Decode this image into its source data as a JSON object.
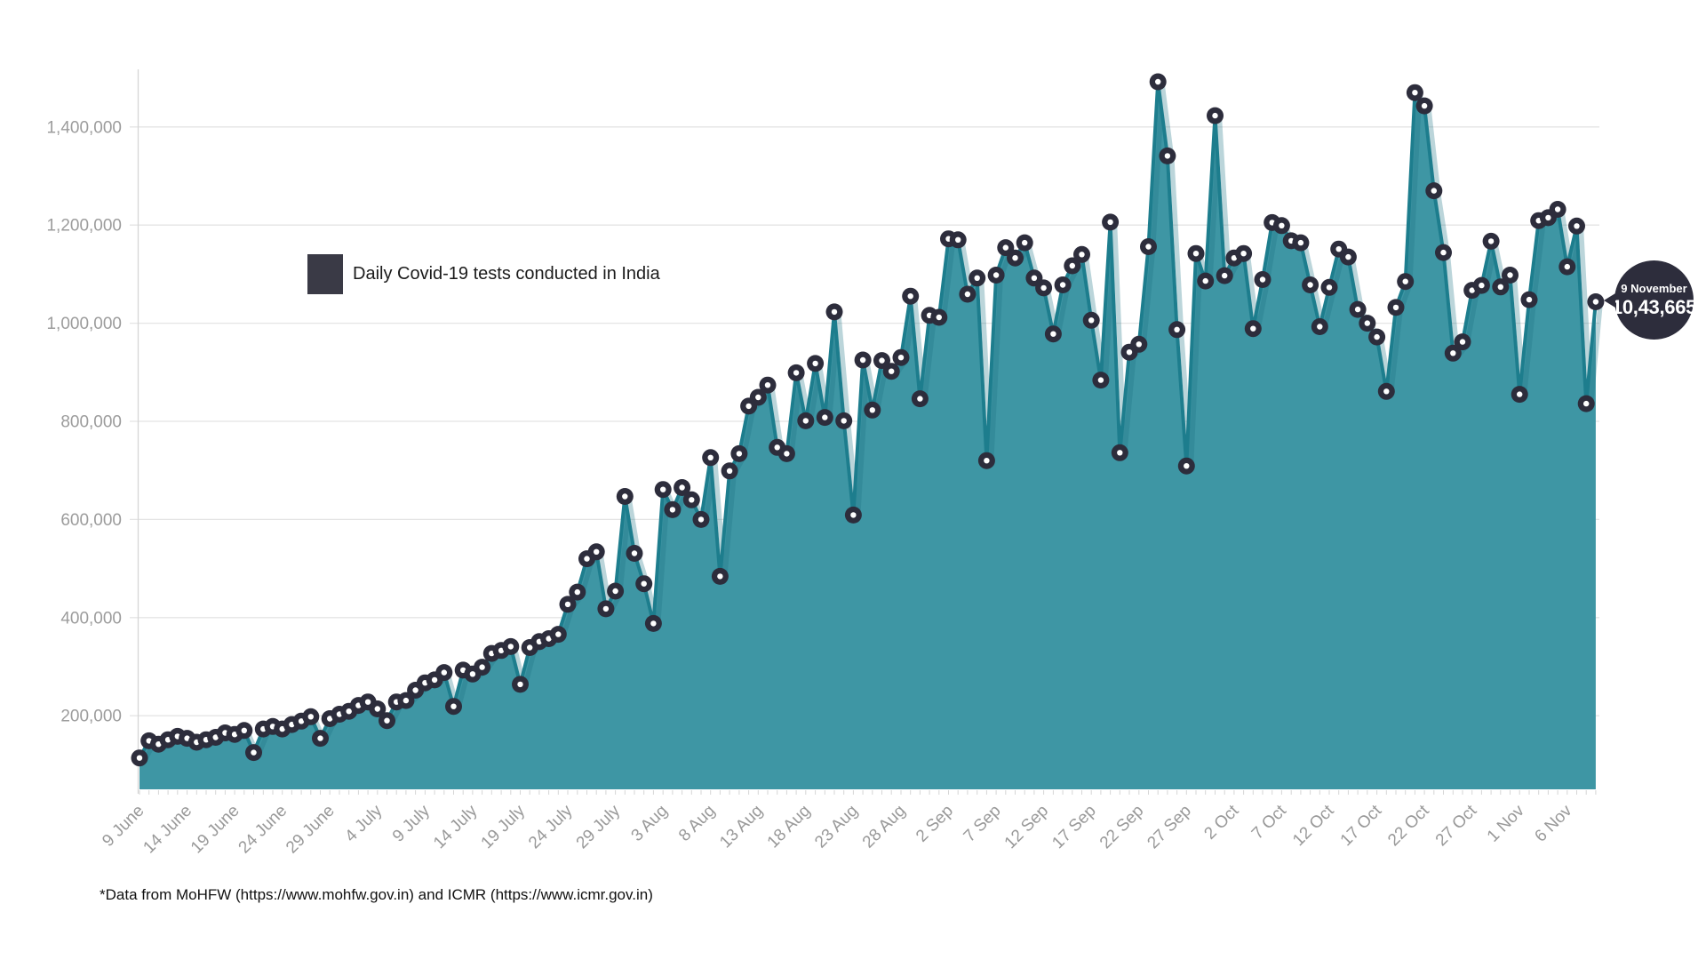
{
  "legend": {
    "label": "Daily Covid-19 tests conducted in India",
    "swatch_color": "#3a3a46"
  },
  "callout": {
    "date_label": "9 November",
    "value_label": "10,43,665",
    "bg_color": "#2d2d3c",
    "text_color": "#ffffff",
    "points_to_index": 153
  },
  "footer": {
    "text": "*Data from MoHFW (https://www.mohfw.gov.in) and ICMR (https://www.icmr.gov.in)"
  },
  "chart_data": {
    "type": "area",
    "title": "",
    "series_name": "Daily Covid-19 tests conducted in India",
    "x_start": "9 June",
    "x_end": "9 Nov",
    "x_tick_every": 5,
    "x_tick_labels": [
      "9 June",
      "14 June",
      "19 June",
      "24 June",
      "29 June",
      "4 July",
      "9 July",
      "14 July",
      "19 July",
      "24 July",
      "29 July",
      "3 Aug",
      "8 Aug",
      "13 Aug",
      "18 Aug",
      "23 Aug",
      "28 Aug",
      "2 Sep",
      "7 Sep",
      "12 Sep",
      "17 Sep",
      "22 Sep",
      "27 Sep",
      "2 Oct",
      "7 Oct",
      "12 Oct",
      "17 Oct",
      "22 Oct",
      "27 Oct",
      "1 Nov",
      "6 Nov"
    ],
    "y_min": 50000,
    "y_max": 1510000,
    "grid": true,
    "legend_position": "top-left-inside",
    "y_ticks": [
      {
        "value": 200000,
        "label": "200,000"
      },
      {
        "value": 400000,
        "label": "400,000"
      },
      {
        "value": 600000,
        "label": "600,000"
      },
      {
        "value": 800000,
        "label": "800,000"
      },
      {
        "value": 1000000,
        "label": "1,000,000"
      },
      {
        "value": 1200000,
        "label": "1,200,000"
      },
      {
        "value": 1400000,
        "label": "1,400,000"
      }
    ],
    "values": [
      114000,
      149000,
      142000,
      151000,
      158000,
      154000,
      146000,
      151000,
      156000,
      165000,
      162000,
      170000,
      125000,
      173000,
      178000,
      173000,
      182000,
      189000,
      198000,
      154000,
      194000,
      203000,
      209000,
      221000,
      228000,
      214000,
      190000,
      228000,
      231000,
      252000,
      267000,
      273000,
      288000,
      219000,
      293000,
      285000,
      299000,
      327000,
      333000,
      341000,
      264000,
      339000,
      351000,
      357000,
      366000,
      427000,
      452000,
      520000,
      534000,
      418000,
      454000,
      647000,
      531000,
      469000,
      388000,
      661000,
      620000,
      665000,
      640000,
      600000,
      726000,
      484000,
      699000,
      734000,
      831000,
      849000,
      874000,
      747000,
      734000,
      899000,
      801000,
      918000,
      808000,
      1023000,
      801000,
      609000,
      925000,
      823000,
      924000,
      902000,
      930000,
      1055000,
      846000,
      1016000,
      1012000,
      1172000,
      1170000,
      1059000,
      1092000,
      720000,
      1098000,
      1154000,
      1133000,
      1164000,
      1092000,
      1072000,
      978000,
      1078000,
      1117000,
      1140000,
      1006000,
      884000,
      1206000,
      736000,
      941000,
      957000,
      1156000,
      1492000,
      1341000,
      987000,
      709000,
      1142000,
      1086000,
      1423000,
      1097000,
      1133000,
      1142000,
      989000,
      1089000,
      1205000,
      1199000,
      1168000,
      1164000,
      1078000,
      993000,
      1073000,
      1151000,
      1135000,
      1028000,
      1000000,
      972000,
      861000,
      1032000,
      1085000,
      1470000,
      1443000,
      1270000,
      1144000,
      939000,
      962000,
      1067000,
      1077000,
      1167000,
      1074000,
      1098000,
      855000,
      1048000,
      1209000,
      1215000,
      1232000,
      1115000,
      1198000,
      836000,
      1043665
    ],
    "last_point": {
      "date": "9 November",
      "value": 1043665,
      "value_display": "10,43,665"
    },
    "colors": {
      "area_fill": "#3e96a4",
      "line": "#1d7d8d",
      "line_shadow": "rgba(29,115,131,0.30)",
      "marker": "#2d2d3c",
      "marker_center": "#ffffff",
      "grid": "#e4e4e4",
      "axis": "#d6d6d6",
      "y_label": "#9c9c9c",
      "x_label": "#999999"
    }
  }
}
